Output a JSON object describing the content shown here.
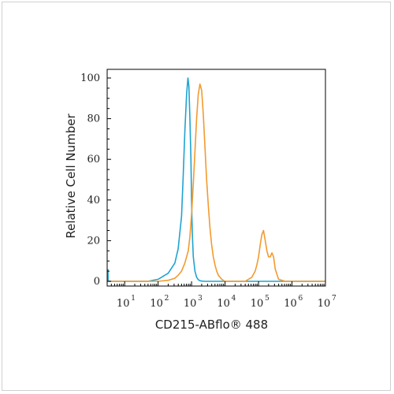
{
  "chart_data": {
    "type": "line",
    "title": "",
    "xlabel": "CD215-ABflo® 488",
    "ylabel": "Relative Cell Number",
    "x_scale": "log",
    "xlim": [
      3,
      10000000
    ],
    "ylim": [
      0,
      100
    ],
    "x_ticks": [
      {
        "base": "10",
        "exp": "1",
        "value": 10
      },
      {
        "base": "10",
        "exp": "2",
        "value": 100
      },
      {
        "base": "10",
        "exp": "3",
        "value": 1000
      },
      {
        "base": "10",
        "exp": "4",
        "value": 10000
      },
      {
        "base": "10",
        "exp": "5",
        "value": 100000
      },
      {
        "base": "10",
        "exp": "6",
        "value": 1000000
      },
      {
        "base": "10",
        "exp": "7",
        "value": 10000000
      }
    ],
    "y_ticks": [
      "0",
      "20",
      "40",
      "60",
      "80",
      "100"
    ],
    "grid": false,
    "legend": "none",
    "series": [
      {
        "color": "#1fa3d1",
        "x": [
          3.16,
          3.2,
          3.4,
          3.8,
          50,
          100,
          200,
          316,
          398,
          501,
          562,
          631,
          708,
          776,
          832,
          891,
          955,
          1000,
          1047,
          1122,
          1259,
          1413,
          1585,
          1778,
          2000,
          2512,
          10000000
        ],
        "y": [
          6,
          0.3,
          0.1,
          0,
          0,
          1,
          4,
          9,
          16,
          32,
          52,
          74,
          92,
          100,
          96,
          80,
          60,
          40,
          24,
          12,
          5,
          2,
          0.8,
          0.3,
          0.1,
          0,
          0
        ]
      },
      {
        "color": "#f39a2e",
        "x": [
          3,
          100,
          200,
          316,
          398,
          501,
          631,
          794,
          891,
          1000,
          1122,
          1259,
          1413,
          1585,
          1778,
          1995,
          2239,
          2512,
          2818,
          3162,
          3548,
          3981,
          4467,
          5012,
          5623,
          6310,
          7943,
          10000,
          15849,
          25119,
          39811,
          50119,
          63096,
          79433,
          89125,
          100000,
          112202,
          125893,
          141254,
          158489,
          177828,
          199526,
          223872,
          251189,
          281838,
          316228,
          398107,
          630957,
          1000000,
          10000000
        ],
        "y": [
          0,
          0,
          0.5,
          1.5,
          3,
          5,
          9,
          15,
          22,
          33,
          48,
          64,
          80,
          92,
          97,
          94,
          82,
          66,
          50,
          37,
          26,
          18,
          12,
          8,
          5,
          3,
          1,
          0,
          0,
          0,
          0,
          1,
          2,
          5,
          8,
          12,
          18,
          23,
          25,
          20,
          15,
          12,
          12,
          14,
          12,
          6,
          1,
          0,
          0,
          0
        ]
      }
    ]
  }
}
